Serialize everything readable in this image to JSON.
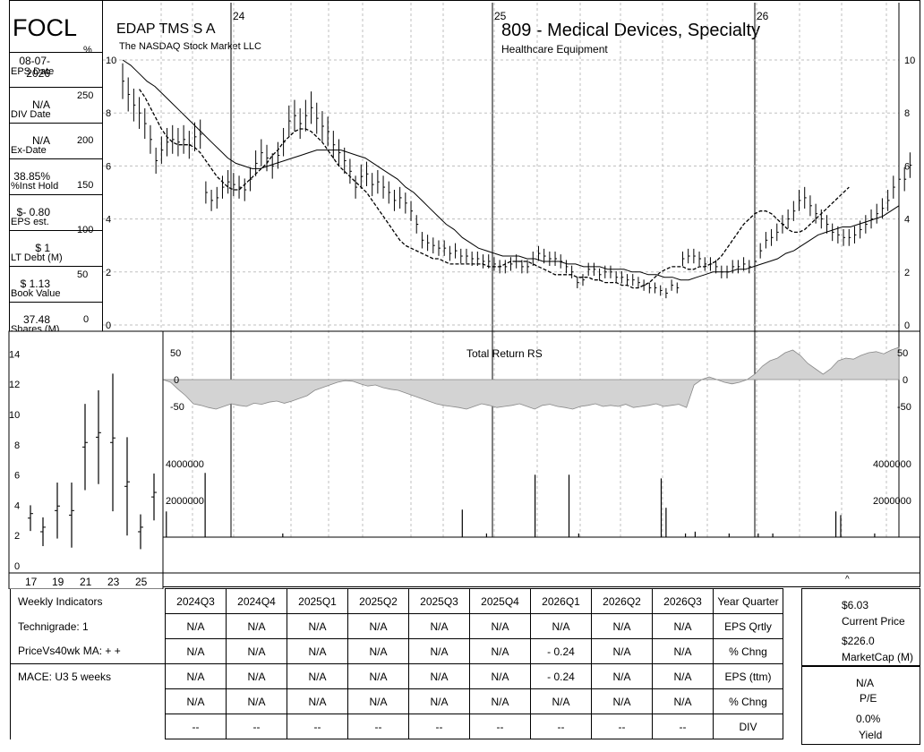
{
  "ticker": "FOCL",
  "company": "EDAP TMS S A",
  "exchange": "The NASDAQ Stock Market LLC",
  "industry": "809 - Medical Devices, Specialty",
  "sector": "Healthcare Equipment",
  "pct_symbol": "%",
  "dollar_symbol": "$",
  "sidebar": [
    {
      "value": "08-07-2026",
      "label": "EPS Date"
    },
    {
      "value": "N/A",
      "label": "DIV Date"
    },
    {
      "value": "N/A",
      "label": "Ex-Date"
    },
    {
      "value": "38.85%",
      "label": "%Inst Hold"
    },
    {
      "value": "$- 0.80",
      "label": "EPS est."
    },
    {
      "value": "$ 1",
      "label": "LT Debt (M)"
    },
    {
      "value": "$ 1.13",
      "label": "Book Value"
    },
    {
      "value": "37.48",
      "label": "Shares (M)"
    }
  ],
  "pct_ticks": [
    "250",
    "200",
    "150",
    "100",
    "50",
    "0"
  ],
  "rs_label": "Total Return RS",
  "colors": {
    "rs_fill": "#d3d3d3",
    "line": "#000000",
    "grid": "#bfbfbf"
  },
  "chart_data": [
    {
      "type": "line",
      "title": "809 - Medical Devices, Specialty",
      "x_year_markers": [
        "24",
        "25",
        "26"
      ],
      "y_ticks": [
        0,
        2,
        4,
        6,
        8,
        10
      ],
      "ylim": [
        0,
        10
      ],
      "grid": true,
      "weeks": 141,
      "series": [
        {
          "values": [
            9.2,
            8.7,
            8.3,
            8.0,
            7.6,
            7.0,
            6.2,
            6.6,
            6.9,
            7.0,
            6.9,
            7.0,
            6.8,
            7.1,
            7.2,
            5.0,
            4.7,
            4.8,
            5.2,
            5.4,
            5.3,
            5.2,
            5.1,
            5.5,
            6.1,
            6.5,
            6.3,
            6.0,
            6.4,
            6.9,
            7.7,
            7.9,
            7.6,
            7.9,
            8.2,
            7.8,
            7.5,
            7.3,
            6.8,
            6.5,
            6.2,
            5.8,
            5.2,
            5.6,
            5.7,
            5.3,
            5.4,
            5.2,
            5.0,
            4.7,
            4.8,
            4.6,
            4.3,
            3.8,
            3.2,
            3.1,
            3.0,
            2.9,
            2.9,
            2.7,
            2.8,
            2.6,
            2.6,
            2.5,
            2.5,
            2.4,
            2.4,
            2.3,
            2.2,
            2.2,
            2.3,
            2.4,
            2.2,
            2.2,
            2.5,
            2.7,
            2.6,
            2.5,
            2.5,
            2.4,
            2.2,
            2.0,
            1.6,
            1.7,
            2.1,
            2.1,
            1.9,
            2.0,
            2.0,
            1.8,
            1.8,
            1.7,
            1.7,
            1.6,
            1.5,
            1.4,
            1.4,
            1.3,
            1.2,
            1.5,
            1.4,
            2.5,
            2.6,
            2.6,
            2.5,
            2.3,
            2.3,
            2.2,
            2.0,
            2.0,
            2.2,
            2.2,
            2.3,
            2.2,
            2.4,
            2.8,
            3.2,
            3.3,
            3.5,
            3.8,
            4.0,
            4.3,
            4.7,
            4.8,
            4.5,
            4.2,
            4.0,
            3.8,
            3.5,
            3.4,
            3.3,
            3.3,
            3.4,
            3.6,
            3.8,
            4.0,
            4.2,
            4.4,
            4.7,
            5.2,
            5.5,
            5.5,
            6.03
          ]
        },
        {
          "values": [
            8.9,
            8.6,
            8.2,
            7.8,
            7.4,
            7.1,
            6.9,
            6.8,
            6.8,
            6.8,
            6.7,
            6.5,
            6.2,
            5.9,
            5.6,
            5.4,
            5.2,
            5.1,
            5.1,
            5.3,
            5.5,
            5.7,
            5.9,
            6.1,
            6.4,
            6.6,
            6.9,
            7.1,
            7.3,
            7.4,
            7.4,
            7.3,
            7.1,
            6.9,
            6.6,
            6.3,
            6.0,
            5.8,
            5.6,
            5.4,
            5.2,
            5.0,
            4.7,
            4.4,
            4.1,
            3.8,
            3.5,
            3.2,
            3.0,
            2.9,
            2.8,
            2.7,
            2.6,
            2.5,
            2.5,
            2.4,
            2.3,
            2.3,
            2.3,
            2.3,
            2.3,
            2.3,
            2.3,
            2.2,
            2.2,
            2.2,
            2.3,
            2.4,
            2.4,
            2.4,
            2.4,
            2.3,
            2.2,
            2.1,
            2.0,
            1.9,
            1.9,
            1.9,
            1.9,
            1.8,
            1.8,
            1.8,
            1.7,
            1.7,
            1.6,
            1.6,
            1.6,
            1.5,
            1.5,
            1.4,
            1.4,
            1.5,
            1.6,
            1.8,
            2.0,
            2.1,
            2.2,
            2.2,
            2.2,
            2.1,
            2.1,
            2.2,
            2.2,
            2.3,
            2.4,
            2.6,
            2.9,
            3.2,
            3.5,
            3.8,
            4.0,
            4.2,
            4.3,
            4.3,
            4.2,
            4.0,
            3.8,
            3.6,
            3.5,
            3.5,
            3.6,
            3.8,
            4.0,
            4.2,
            4.4,
            4.6,
            4.8,
            5.0,
            5.2
          ]
        },
        {
          "values": [
            10.0,
            9.8,
            9.5,
            9.2,
            9.0,
            8.7,
            8.4,
            8.1,
            7.8,
            7.5,
            7.2,
            6.9,
            6.6,
            6.3,
            6.1,
            6.0,
            5.9,
            5.9,
            6.0,
            6.1,
            6.2,
            6.3,
            6.4,
            6.5,
            6.6,
            6.6,
            6.6,
            6.6,
            6.5,
            6.4,
            6.3,
            6.1,
            5.9,
            5.7,
            5.5,
            5.2,
            5.0,
            4.7,
            4.4,
            4.1,
            3.8,
            3.6,
            3.3,
            3.1,
            2.9,
            2.8,
            2.7,
            2.6,
            2.6,
            2.6,
            2.5,
            2.5,
            2.4,
            2.4,
            2.4,
            2.3,
            2.3,
            2.2,
            2.2,
            2.2,
            2.1,
            2.1,
            2.1,
            2.0,
            2.0,
            1.9,
            1.9,
            1.8,
            1.8,
            1.7,
            1.7,
            1.8,
            1.9,
            2.0,
            2.0,
            2.0,
            2.1,
            2.1,
            2.2,
            2.3,
            2.4,
            2.5,
            2.7,
            2.8,
            3.0,
            3.2,
            3.4,
            3.5,
            3.6,
            3.7,
            3.7,
            3.8,
            3.9,
            4.0,
            4.1,
            4.3,
            4.5
          ]
        }
      ]
    },
    {
      "type": "area",
      "title": "Total Return RS",
      "y_ticks": [
        50,
        0,
        -50
      ],
      "ylim": [
        -75,
        75
      ],
      "values": [
        0,
        -5,
        -18,
        -30,
        -45,
        -48,
        -52,
        -55,
        -50,
        -45,
        -48,
        -50,
        -44,
        -46,
        -42,
        -40,
        -44,
        -40,
        -35,
        -30,
        -20,
        -15,
        -10,
        -5,
        -2,
        -3,
        -8,
        -12,
        -10,
        -15,
        -18,
        -20,
        -25,
        -30,
        -35,
        -40,
        -45,
        -48,
        -50,
        -52,
        -55,
        -50,
        -45,
        -48,
        -52,
        -50,
        -48,
        -45,
        -50,
        -55,
        -48,
        -46,
        -50,
        -52,
        -55,
        -50,
        -48,
        -45,
        -50,
        -48,
        -50,
        -46,
        -52,
        -50,
        -48,
        -45,
        -50,
        -48,
        -46,
        -52,
        -10,
        0,
        5,
        0,
        -5,
        -8,
        -5,
        0,
        10,
        25,
        35,
        40,
        50,
        55,
        45,
        30,
        20,
        10,
        20,
        35,
        40,
        38,
        45,
        50,
        52,
        48,
        55,
        60
      ]
    },
    {
      "type": "bar",
      "title": "Volume",
      "y_ticks": [
        "4000000",
        "2000000"
      ],
      "ylim": [
        0,
        5000000
      ],
      "bars": [
        [
          3,
          800000
        ],
        [
          6,
          3200000
        ],
        [
          9,
          1400000
        ],
        [
          17,
          3500000
        ],
        [
          33,
          200000
        ],
        [
          70,
          1500000
        ],
        [
          75,
          200000
        ],
        [
          85,
          3400000
        ],
        [
          92,
          3400000
        ],
        [
          94,
          200000
        ],
        [
          111,
          3200000
        ],
        [
          112,
          1600000
        ],
        [
          116,
          200000
        ],
        [
          118,
          300000
        ],
        [
          125,
          200000
        ],
        [
          131,
          200000
        ],
        [
          134,
          200000
        ],
        [
          147,
          1400000
        ],
        [
          148,
          1200000
        ],
        [
          155,
          200000
        ]
      ]
    },
    {
      "type": "bar",
      "title": "Annual price range",
      "categories": [
        "17",
        "18",
        "19",
        "20",
        "21",
        "22",
        "23",
        "24",
        "25",
        "26"
      ],
      "x_labels": [
        "17",
        "19",
        "21",
        "23",
        "25"
      ],
      "y_ticks": [
        0,
        2,
        4,
        6,
        8,
        10,
        12,
        14
      ],
      "ylim": [
        -0.5,
        15.5
      ],
      "high": [
        4.0,
        3.2,
        5.5,
        5.5,
        10.7,
        11.6,
        12.7,
        8.5,
        3.4,
        6.1
      ],
      "low": [
        2.3,
        1.3,
        1.8,
        1.2,
        5.0,
        5.4,
        3.6,
        2.0,
        1.1,
        3.0
      ]
    }
  ],
  "table": {
    "headers": [
      "2024Q3",
      "2024Q4",
      "2025Q1",
      "2025Q2",
      "2025Q3",
      "2025Q4",
      "2026Q1",
      "2026Q2",
      "2026Q3",
      "Year Quarter"
    ],
    "row_labels": [
      "Weekly Indicators",
      "Technigrade: 1",
      "PriceVs40wk MA:  + +",
      "MACE: U3  5 weeks",
      "",
      ""
    ],
    "rows": [
      {
        "cells": [
          "N/A",
          "N/A",
          "N/A",
          "N/A",
          "N/A",
          "N/A",
          "N/A",
          "N/A",
          "N/A"
        ],
        "label": "EPS Qrtly"
      },
      {
        "cells": [
          "N/A",
          "N/A",
          "N/A",
          "N/A",
          "N/A",
          "N/A",
          "- 0.24",
          "N/A",
          "N/A"
        ],
        "label": "% Chng"
      },
      {
        "cells": [
          "N/A",
          "N/A",
          "N/A",
          "N/A",
          "N/A",
          "N/A",
          "- 0.24",
          "N/A",
          "N/A"
        ],
        "label": "EPS (ttm)"
      },
      {
        "cells": [
          "N/A",
          "N/A",
          "N/A",
          "N/A",
          "N/A",
          "N/A",
          "N/A",
          "N/A",
          "N/A"
        ],
        "label": "% Chng"
      },
      {
        "cells": [
          "--",
          "--",
          "--",
          "--",
          "--",
          "--",
          "--",
          "--",
          "--"
        ],
        "label": "DIV"
      }
    ]
  },
  "right_panel": {
    "price": "$6.03",
    "price_label": "Current Price",
    "mcap": "$226.0",
    "mcap_label": "MarketCap (M)",
    "pe": "N/A",
    "pe_label": "P/E",
    "yield": "0.0%",
    "yield_label": "Yield"
  },
  "caret": "^"
}
